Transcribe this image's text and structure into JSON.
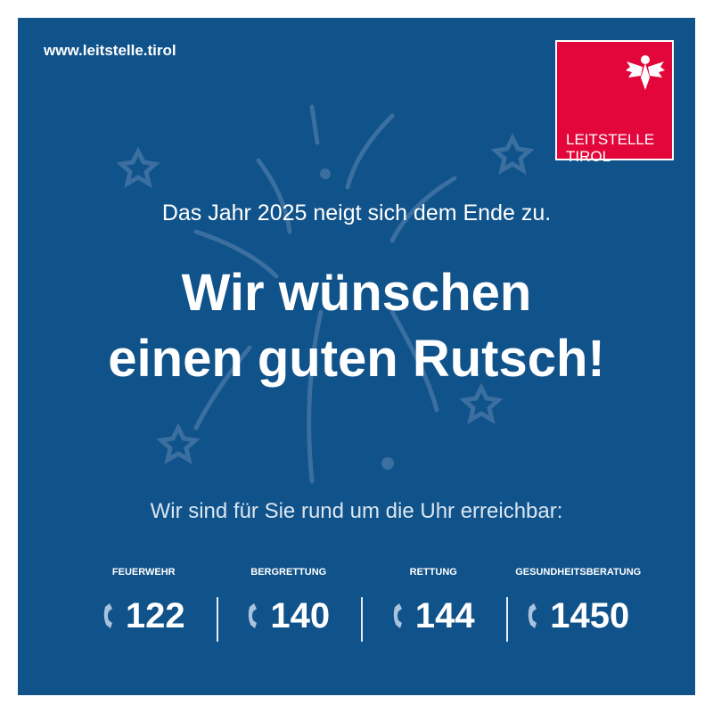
{
  "header": {
    "url": "www.leitstelle.tirol"
  },
  "logo": {
    "line1": "LEITSTELLE",
    "line2": "TIROL",
    "color": "#e2063a"
  },
  "main": {
    "subtitle": "Das Jahr 2025 neigt sich dem Ende zu.",
    "headline1": "Wir wünschen",
    "headline2": "einen guten Rutsch!",
    "availability": "Wir sind für Sie rund um die Uhr erreichbar:"
  },
  "numbers": [
    {
      "label": "FEUERWEHR",
      "number": "122",
      "icon": "phone-icon"
    },
    {
      "label": "BERGRETTUNG",
      "number": "140",
      "icon": "phone-icon"
    },
    {
      "label": "RETTUNG",
      "number": "144",
      "icon": "phone-icon"
    },
    {
      "label": "GESUNDHEITSBERATUNG",
      "number": "1450",
      "icon": "phone-icon"
    }
  ],
  "colors": {
    "background": "#10528a",
    "text": "#ffffff",
    "phone_icon": "#a9c3de"
  }
}
